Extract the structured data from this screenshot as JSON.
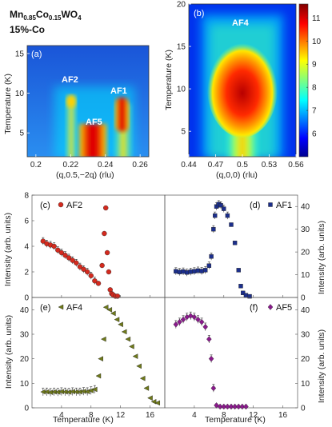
{
  "header": {
    "material": "Mn",
    "sub1": "0.85",
    "mid": "Co",
    "sub2": "0.15",
    "tail": "WO",
    "sub3": "4",
    "subtitle": "15%-Co"
  },
  "chart_data": [
    {
      "type": "heatmap",
      "id": "map_a",
      "label": "(a)",
      "xlabel": "(q,0.5,−2q) (rlu)",
      "ylabel": "Temperature (K)",
      "xlim": [
        0.195,
        0.265
      ],
      "ylim": [
        2,
        16
      ],
      "xticks": [
        "0.2",
        "0.22",
        "0.24",
        "0.26"
      ],
      "yticks": [
        "5",
        "10",
        "15"
      ],
      "peaks": [
        {
          "name": "AF2",
          "x": 0.228,
          "t_range": [
            2,
            10
          ]
        },
        {
          "name": "AF5",
          "x": 0.237,
          "t_range": [
            2,
            7
          ]
        },
        {
          "name": "AF1",
          "x": 0.252,
          "t_range": [
            2,
            10
          ]
        }
      ]
    },
    {
      "type": "heatmap",
      "id": "map_b",
      "label": "(b)",
      "xlabel": "(q,0,0) (rlu)",
      "ylabel": "Temperature (K)",
      "xlim": [
        0.44,
        0.56
      ],
      "ylim": [
        2,
        20
      ],
      "xticks": [
        "0.44",
        "0.47",
        "0.5",
        "0.53",
        "0.56"
      ],
      "yticks": [
        "5",
        "10",
        "15",
        "20"
      ],
      "peaks": [
        {
          "name": "AF4",
          "x": 0.5,
          "t_range": [
            2,
            16
          ]
        }
      ],
      "colorbar": {
        "min": 5,
        "max": 11.6,
        "ticks": [
          "6",
          "7",
          "8",
          "9",
          "10",
          "11"
        ]
      }
    },
    {
      "type": "scatter",
      "id": "c",
      "label": "(c)",
      "series_name": "AF2",
      "color": "#d42a1e",
      "marker": "circle",
      "xlim": [
        0,
        18
      ],
      "ylim": [
        0,
        8
      ],
      "yticks": [
        "0",
        "2",
        "4",
        "6",
        "8"
      ],
      "ylabel": "Intensity (arb. units)",
      "x": [
        1.5,
        2,
        2.5,
        3,
        3.5,
        4,
        4.5,
        5,
        5.5,
        6,
        6.5,
        7,
        7.5,
        8,
        8.5,
        9,
        9.5,
        9.8,
        10,
        10.2,
        10.4,
        10.6,
        10.8,
        11,
        11.3,
        11.6
      ],
      "y": [
        4.4,
        4.2,
        4.1,
        4.0,
        3.7,
        3.5,
        3.3,
        3.1,
        2.9,
        2.7,
        2.4,
        2.2,
        2.0,
        1.7,
        1.3,
        1.1,
        2.5,
        5.0,
        7.0,
        3.5,
        2.0,
        0.6,
        0.3,
        0.2,
        0.1,
        0.1
      ]
    },
    {
      "type": "scatter",
      "id": "d",
      "label": "(d)",
      "series_name": "AF1",
      "color": "#1c2f8c",
      "marker": "square",
      "xlim": [
        0,
        18
      ],
      "ylim": [
        0,
        45
      ],
      "yticks": [
        "0",
        "10",
        "20",
        "30",
        "40"
      ],
      "ylabel": "Intensity (arb. units)",
      "x": [
        1.5,
        2,
        2.5,
        3,
        3.5,
        4,
        4.5,
        5,
        5.5,
        6,
        6.3,
        6.6,
        6.8,
        7,
        7.3,
        7.6,
        8,
        8.5,
        9,
        9.5,
        10,
        10.3,
        10.6,
        11,
        11.5
      ],
      "y": [
        11.5,
        11.2,
        11.4,
        11.0,
        11.3,
        11.5,
        11.8,
        11.6,
        12,
        14,
        18,
        30,
        36,
        40,
        41,
        40.5,
        39,
        36,
        32,
        24,
        12,
        5,
        2,
        1,
        0.5
      ]
    },
    {
      "type": "scatter",
      "id": "e",
      "label": "(e)",
      "series_name": "AF4",
      "color": "#6f7a1a",
      "marker": "triangle",
      "xlim": [
        0,
        18
      ],
      "ylim": [
        0,
        45
      ],
      "yticks": [
        "0",
        "10",
        "20",
        "30",
        "40"
      ],
      "ylabel": "Intensity (arb. units)",
      "xticks": [
        "4",
        "8",
        "12",
        "16"
      ],
      "xlabel": "Temperature (K)",
      "x": [
        1.5,
        2,
        2.5,
        3,
        3.5,
        4,
        4.5,
        5,
        5.5,
        6,
        6.5,
        7,
        7.5,
        8,
        8.5,
        9,
        9.3,
        9.7,
        10,
        10.5,
        11,
        11.5,
        12,
        12.5,
        13,
        13.5,
        14,
        14.5,
        15,
        15.5,
        16,
        16.5,
        17
      ],
      "y": [
        6.5,
        6.5,
        6.3,
        6.5,
        6.4,
        6.6,
        6.5,
        6.4,
        6.6,
        6.5,
        6.5,
        6.7,
        6.6,
        7,
        7.5,
        13,
        20,
        28,
        41,
        40,
        38.5,
        36,
        34,
        31,
        28,
        25,
        21,
        17,
        12,
        8,
        4,
        2.5,
        2
      ]
    },
    {
      "type": "scatter",
      "id": "f",
      "label": "(f)",
      "series_name": "AF5",
      "color": "#8a1a8c",
      "marker": "diamond",
      "xlim": [
        0,
        18
      ],
      "ylim": [
        0,
        45
      ],
      "yticks": [
        "0",
        "10",
        "20",
        "30",
        "40"
      ],
      "ylabel": "Intensity (arb. units)",
      "xticks": [
        "4",
        "8",
        "12",
        "16"
      ],
      "xlabel": "Temperature (K)",
      "x": [
        1.5,
        2,
        2.5,
        3,
        3.5,
        4,
        4.5,
        5,
        5.5,
        6,
        6.3,
        6.6,
        7,
        7.5,
        8,
        8.5,
        9,
        9.5,
        10,
        10.5,
        11
      ],
      "y": [
        34,
        35,
        36,
        37,
        37.5,
        37,
        36,
        35,
        33,
        28,
        20,
        8,
        1,
        0.5,
        0.5,
        0.5,
        0.5,
        0.5,
        0.5,
        0.5,
        0.5
      ]
    }
  ]
}
